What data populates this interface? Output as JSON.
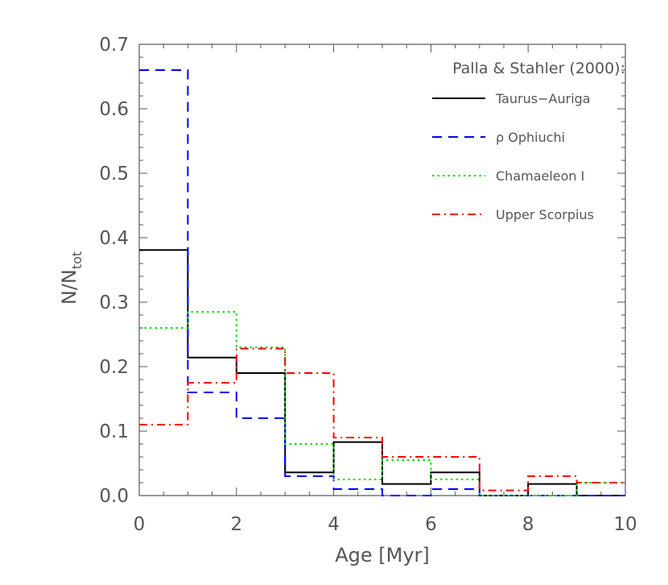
{
  "chart_data": {
    "type": "histogram",
    "xlabel": "Age [Myr]",
    "ylabel": "N/N",
    "ylabel_sub": "tot",
    "xlim": [
      0,
      10
    ],
    "ylim": [
      0,
      0.7
    ],
    "x_ticks": [
      "0",
      "2",
      "4",
      "6",
      "8",
      "10"
    ],
    "y_ticks": [
      "0.0",
      "0.1",
      "0.2",
      "0.3",
      "0.4",
      "0.5",
      "0.6",
      "0.7"
    ],
    "bin_edges": [
      0,
      1,
      2,
      3,
      4,
      5,
      6,
      7,
      8,
      9,
      10
    ],
    "legend_title": "Palla & Stahler (2000):",
    "legend_position": "top-right",
    "grid": false,
    "series": [
      {
        "name": "Taurus−Auriga",
        "color": "#000000",
        "style": "solid",
        "values": [
          0.381,
          0.214,
          0.19,
          0.036,
          0.083,
          0.018,
          0.036,
          0.0,
          0.018,
          0.0
        ]
      },
      {
        "name": "ρ Ophiuchi",
        "color": "#0000ff",
        "style": "dashed",
        "values": [
          0.66,
          0.16,
          0.12,
          0.03,
          0.01,
          0.0,
          0.01,
          0.0,
          0.0,
          0.0
        ]
      },
      {
        "name": "Chamaeleon I",
        "color": "#00dd00",
        "style": "dotted",
        "values": [
          0.26,
          0.285,
          0.23,
          0.08,
          0.025,
          0.055,
          0.025,
          0.0,
          0.0,
          0.02
        ]
      },
      {
        "name": "Upper Scorpius",
        "color": "#ff0000",
        "style": "dashdot",
        "values": [
          0.11,
          0.175,
          0.228,
          0.19,
          0.09,
          0.06,
          0.06,
          0.008,
          0.03,
          0.02
        ]
      }
    ]
  }
}
